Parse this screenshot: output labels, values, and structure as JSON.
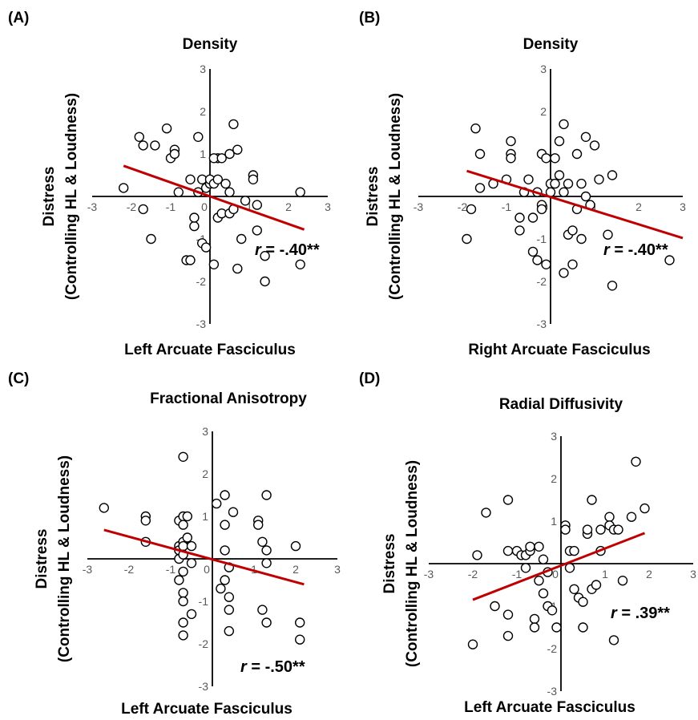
{
  "colors": {
    "points_edge": "#000000",
    "points_fill": "#ffffff",
    "trendline": "#c00000",
    "tick_text": "#595959"
  },
  "chart_data": [
    {
      "id": "A",
      "letter": "(A)",
      "type": "scatter",
      "title": "Density",
      "xlabel": "Left Arcuate Fasciculus",
      "ylabel_lines": [
        "Distress",
        "(Controlling HL & Loudness)"
      ],
      "xlim": [
        -3,
        3
      ],
      "ylim": [
        -3,
        3
      ],
      "xticks": [
        "-3",
        "-2",
        "-1",
        "0",
        "1",
        "2",
        "3"
      ],
      "yticks": [
        "-3",
        "-2",
        "-1",
        "0",
        "1",
        "2",
        "3"
      ],
      "annotation": {
        "r_label": "r",
        "text": " = -.40**"
      },
      "trendline": {
        "x": [
          -2.2,
          2.4
        ],
        "y": [
          0.72,
          -0.78
        ]
      },
      "points": [
        [
          -2.2,
          0.2
        ],
        [
          -1.8,
          1.4
        ],
        [
          -1.7,
          1.2
        ],
        [
          -1.4,
          1.2
        ],
        [
          -1.7,
          -0.3
        ],
        [
          -1.5,
          -1.0
        ],
        [
          -1.1,
          1.6
        ],
        [
          -1.0,
          0.9
        ],
        [
          -0.9,
          1.1
        ],
        [
          -0.9,
          1.0
        ],
        [
          -0.8,
          0.1
        ],
        [
          -0.6,
          -1.5
        ],
        [
          -0.5,
          -1.5
        ],
        [
          -0.5,
          0.4
        ],
        [
          -0.4,
          -0.7
        ],
        [
          -0.4,
          -0.5
        ],
        [
          -0.3,
          0.1
        ],
        [
          -0.2,
          0.4
        ],
        [
          -0.3,
          1.4
        ],
        [
          -0.2,
          -1.1
        ],
        [
          -0.1,
          0.2
        ],
        [
          -0.1,
          -1.2
        ],
        [
          0.0,
          0.3
        ],
        [
          0.0,
          0.4
        ],
        [
          0.1,
          0.3
        ],
        [
          0.2,
          0.9
        ],
        [
          0.1,
          0.9
        ],
        [
          0.2,
          0.4
        ],
        [
          0.2,
          -0.5
        ],
        [
          0.1,
          -1.6
        ],
        [
          0.3,
          0.9
        ],
        [
          0.3,
          -0.4
        ],
        [
          0.4,
          0.3
        ],
        [
          0.5,
          1.0
        ],
        [
          0.6,
          1.7
        ],
        [
          0.5,
          0.1
        ],
        [
          0.5,
          -0.4
        ],
        [
          0.6,
          -0.3
        ],
        [
          0.7,
          1.1
        ],
        [
          0.7,
          -1.7
        ],
        [
          0.8,
          -1.0
        ],
        [
          0.9,
          -0.1
        ],
        [
          1.1,
          0.5
        ],
        [
          1.1,
          0.4
        ],
        [
          1.2,
          -0.2
        ],
        [
          1.2,
          -0.8
        ],
        [
          1.4,
          -1.4
        ],
        [
          1.4,
          -2.0
        ],
        [
          2.3,
          -1.6
        ],
        [
          2.3,
          0.1
        ]
      ]
    },
    {
      "id": "B",
      "letter": "(B)",
      "type": "scatter",
      "title": "Density",
      "xlabel": "Right Arcuate Fasciculus",
      "ylabel_lines": [
        "Distress",
        "(Controlling HL & Loudness)"
      ],
      "xlim": [
        -3,
        3
      ],
      "ylim": [
        -3,
        3
      ],
      "xticks": [
        "-3",
        "-2",
        "-1",
        "0",
        "1",
        "2",
        "3"
      ],
      "yticks": [
        "-3",
        "-2",
        "-1",
        "0",
        "1",
        "2",
        "3"
      ],
      "annotation": {
        "r_label": "r",
        "text": " = -.40**"
      },
      "trendline": {
        "x": [
          -1.9,
          3.0
        ],
        "y": [
          0.6,
          -0.98
        ]
      },
      "points": [
        [
          -1.9,
          -1.0
        ],
        [
          -1.8,
          -0.3
        ],
        [
          -1.7,
          1.6
        ],
        [
          -1.6,
          1.0
        ],
        [
          -1.6,
          0.2
        ],
        [
          -1.3,
          0.3
        ],
        [
          -1.0,
          0.4
        ],
        [
          -0.9,
          1.3
        ],
        [
          -0.9,
          1.0
        ],
        [
          -0.9,
          0.9
        ],
        [
          -0.7,
          -0.5
        ],
        [
          -0.7,
          -0.8
        ],
        [
          -0.6,
          0.1
        ],
        [
          -0.5,
          0.4
        ],
        [
          -0.4,
          -0.5
        ],
        [
          -0.4,
          -1.3
        ],
        [
          -0.3,
          -1.5
        ],
        [
          -0.3,
          0.1
        ],
        [
          -0.2,
          1.0
        ],
        [
          -0.2,
          -0.2
        ],
        [
          -0.2,
          -0.3
        ],
        [
          -0.1,
          0.9
        ],
        [
          -0.1,
          -1.6
        ],
        [
          0.0,
          0.3
        ],
        [
          0.0,
          0.1
        ],
        [
          0.1,
          0.9
        ],
        [
          0.1,
          0.3
        ],
        [
          0.2,
          1.3
        ],
        [
          0.2,
          0.5
        ],
        [
          0.3,
          1.7
        ],
        [
          0.3,
          0.1
        ],
        [
          0.3,
          -1.8
        ],
        [
          0.4,
          0.3
        ],
        [
          0.4,
          -0.9
        ],
        [
          0.5,
          -0.8
        ],
        [
          0.5,
          -1.6
        ],
        [
          0.6,
          1.0
        ],
        [
          0.6,
          -0.3
        ],
        [
          0.7,
          -1.0
        ],
        [
          0.7,
          0.3
        ],
        [
          0.8,
          1.4
        ],
        [
          0.8,
          0.0
        ],
        [
          0.9,
          -0.2
        ],
        [
          1.0,
          1.2
        ],
        [
          1.1,
          0.4
        ],
        [
          1.4,
          0.5
        ],
        [
          1.4,
          -2.1
        ],
        [
          1.3,
          -0.9
        ],
        [
          2.7,
          -1.5
        ]
      ]
    },
    {
      "id": "C",
      "letter": "(C)",
      "type": "scatter",
      "title": "Fractional Anisotropy",
      "xlabel": "Left Arcuate Fasciculus",
      "ylabel_lines": [
        "Distress",
        "(Controlling HL & Loudness)"
      ],
      "xlim": [
        -3,
        3
      ],
      "ylim": [
        -3,
        3
      ],
      "xticks": [
        "-3",
        "-2",
        "-1",
        "0",
        "1",
        "2",
        "3"
      ],
      "yticks": [
        "-3",
        "-2",
        "-1",
        "0",
        "1",
        "2",
        "3"
      ],
      "annotation": {
        "r_label": "r",
        "text": " = -.50**"
      },
      "trendline": {
        "x": [
          -2.6,
          2.2
        ],
        "y": [
          0.68,
          -0.6
        ]
      },
      "points": [
        [
          -2.6,
          1.2
        ],
        [
          -1.6,
          1.0
        ],
        [
          -1.6,
          0.9
        ],
        [
          -1.6,
          0.4
        ],
        [
          -0.8,
          0.9
        ],
        [
          -0.8,
          0.3
        ],
        [
          -0.8,
          0.2
        ],
        [
          -0.8,
          0.0
        ],
        [
          -0.8,
          -0.5
        ],
        [
          -0.7,
          2.4
        ],
        [
          -0.7,
          1.0
        ],
        [
          -0.7,
          0.8
        ],
        [
          -0.7,
          0.4
        ],
        [
          -0.7,
          0.3
        ],
        [
          -0.7,
          0.1
        ],
        [
          -0.7,
          -0.3
        ],
        [
          -0.7,
          -0.8
        ],
        [
          -0.7,
          -1.0
        ],
        [
          -0.7,
          -1.5
        ],
        [
          -0.7,
          -1.8
        ],
        [
          -0.6,
          0.5
        ],
        [
          -0.6,
          1.0
        ],
        [
          -0.5,
          0.3
        ],
        [
          -0.5,
          -0.1
        ],
        [
          -0.5,
          -1.3
        ],
        [
          0.1,
          1.3
        ],
        [
          0.2,
          -0.7
        ],
        [
          0.3,
          1.5
        ],
        [
          0.3,
          0.8
        ],
        [
          0.3,
          0.2
        ],
        [
          0.3,
          -0.5
        ],
        [
          0.4,
          -0.2
        ],
        [
          0.4,
          -0.9
        ],
        [
          0.4,
          -1.2
        ],
        [
          0.4,
          -1.7
        ],
        [
          0.5,
          1.1
        ],
        [
          1.1,
          0.9
        ],
        [
          1.1,
          0.8
        ],
        [
          1.2,
          0.4
        ],
        [
          1.2,
          -1.2
        ],
        [
          1.3,
          1.5
        ],
        [
          1.3,
          0.2
        ],
        [
          1.3,
          -1.5
        ],
        [
          1.3,
          -0.1
        ],
        [
          2.0,
          0.3
        ],
        [
          2.1,
          -1.5
        ],
        [
          2.1,
          -1.9
        ]
      ]
    },
    {
      "id": "D",
      "letter": "(D)",
      "type": "scatter",
      "title": "Radial Diffusivity",
      "xlabel": "Left Arcuate Fasciculus",
      "ylabel_lines": [
        "Distress",
        "(Controlling HL & Loudness)"
      ],
      "xlim": [
        -3,
        3
      ],
      "ylim": [
        -3,
        3
      ],
      "xticks": [
        "-3",
        "-2",
        "-1",
        "0",
        "1",
        "2",
        "3"
      ],
      "yticks": [
        "-3",
        "-2",
        "-1",
        "0",
        "1",
        "2",
        "3"
      ],
      "annotation": {
        "r_label": "r",
        "text": " = .39**"
      },
      "trendline": {
        "x": [
          -2.0,
          1.9
        ],
        "y": [
          -0.85,
          0.72
        ]
      },
      "points": [
        [
          -2.0,
          -1.9
        ],
        [
          -1.9,
          0.2
        ],
        [
          -1.7,
          1.2
        ],
        [
          -1.5,
          -1.0
        ],
        [
          -1.2,
          0.3
        ],
        [
          -1.2,
          1.5
        ],
        [
          -1.2,
          -1.2
        ],
        [
          -1.2,
          -1.7
        ],
        [
          -1.0,
          0.3
        ],
        [
          -0.9,
          0.2
        ],
        [
          -0.8,
          -0.1
        ],
        [
          -0.8,
          0.2
        ],
        [
          -0.7,
          0.3
        ],
        [
          -0.7,
          0.4
        ],
        [
          -0.6,
          -1.3
        ],
        [
          -0.6,
          -1.5
        ],
        [
          -0.5,
          0.4
        ],
        [
          -0.5,
          -0.4
        ],
        [
          -0.4,
          -0.7
        ],
        [
          -0.4,
          0.1
        ],
        [
          -0.3,
          -0.2
        ],
        [
          -0.3,
          -1.0
        ],
        [
          -0.2,
          -1.1
        ],
        [
          -0.1,
          -1.5
        ],
        [
          0.1,
          0.9
        ],
        [
          0.1,
          0.8
        ],
        [
          0.2,
          0.3
        ],
        [
          0.2,
          -0.1
        ],
        [
          0.3,
          0.3
        ],
        [
          0.3,
          -0.6
        ],
        [
          0.4,
          -0.8
        ],
        [
          0.5,
          -0.9
        ],
        [
          0.5,
          -1.5
        ],
        [
          0.6,
          0.7
        ],
        [
          0.6,
          0.8
        ],
        [
          0.7,
          1.5
        ],
        [
          0.7,
          -0.6
        ],
        [
          0.8,
          -0.5
        ],
        [
          0.9,
          0.3
        ],
        [
          0.9,
          0.8
        ],
        [
          1.1,
          1.1
        ],
        [
          1.1,
          0.9
        ],
        [
          1.2,
          0.8
        ],
        [
          1.2,
          -1.8
        ],
        [
          1.3,
          0.8
        ],
        [
          1.4,
          -0.4
        ],
        [
          1.6,
          1.1
        ],
        [
          1.7,
          2.4
        ],
        [
          1.9,
          1.3
        ]
      ]
    }
  ]
}
